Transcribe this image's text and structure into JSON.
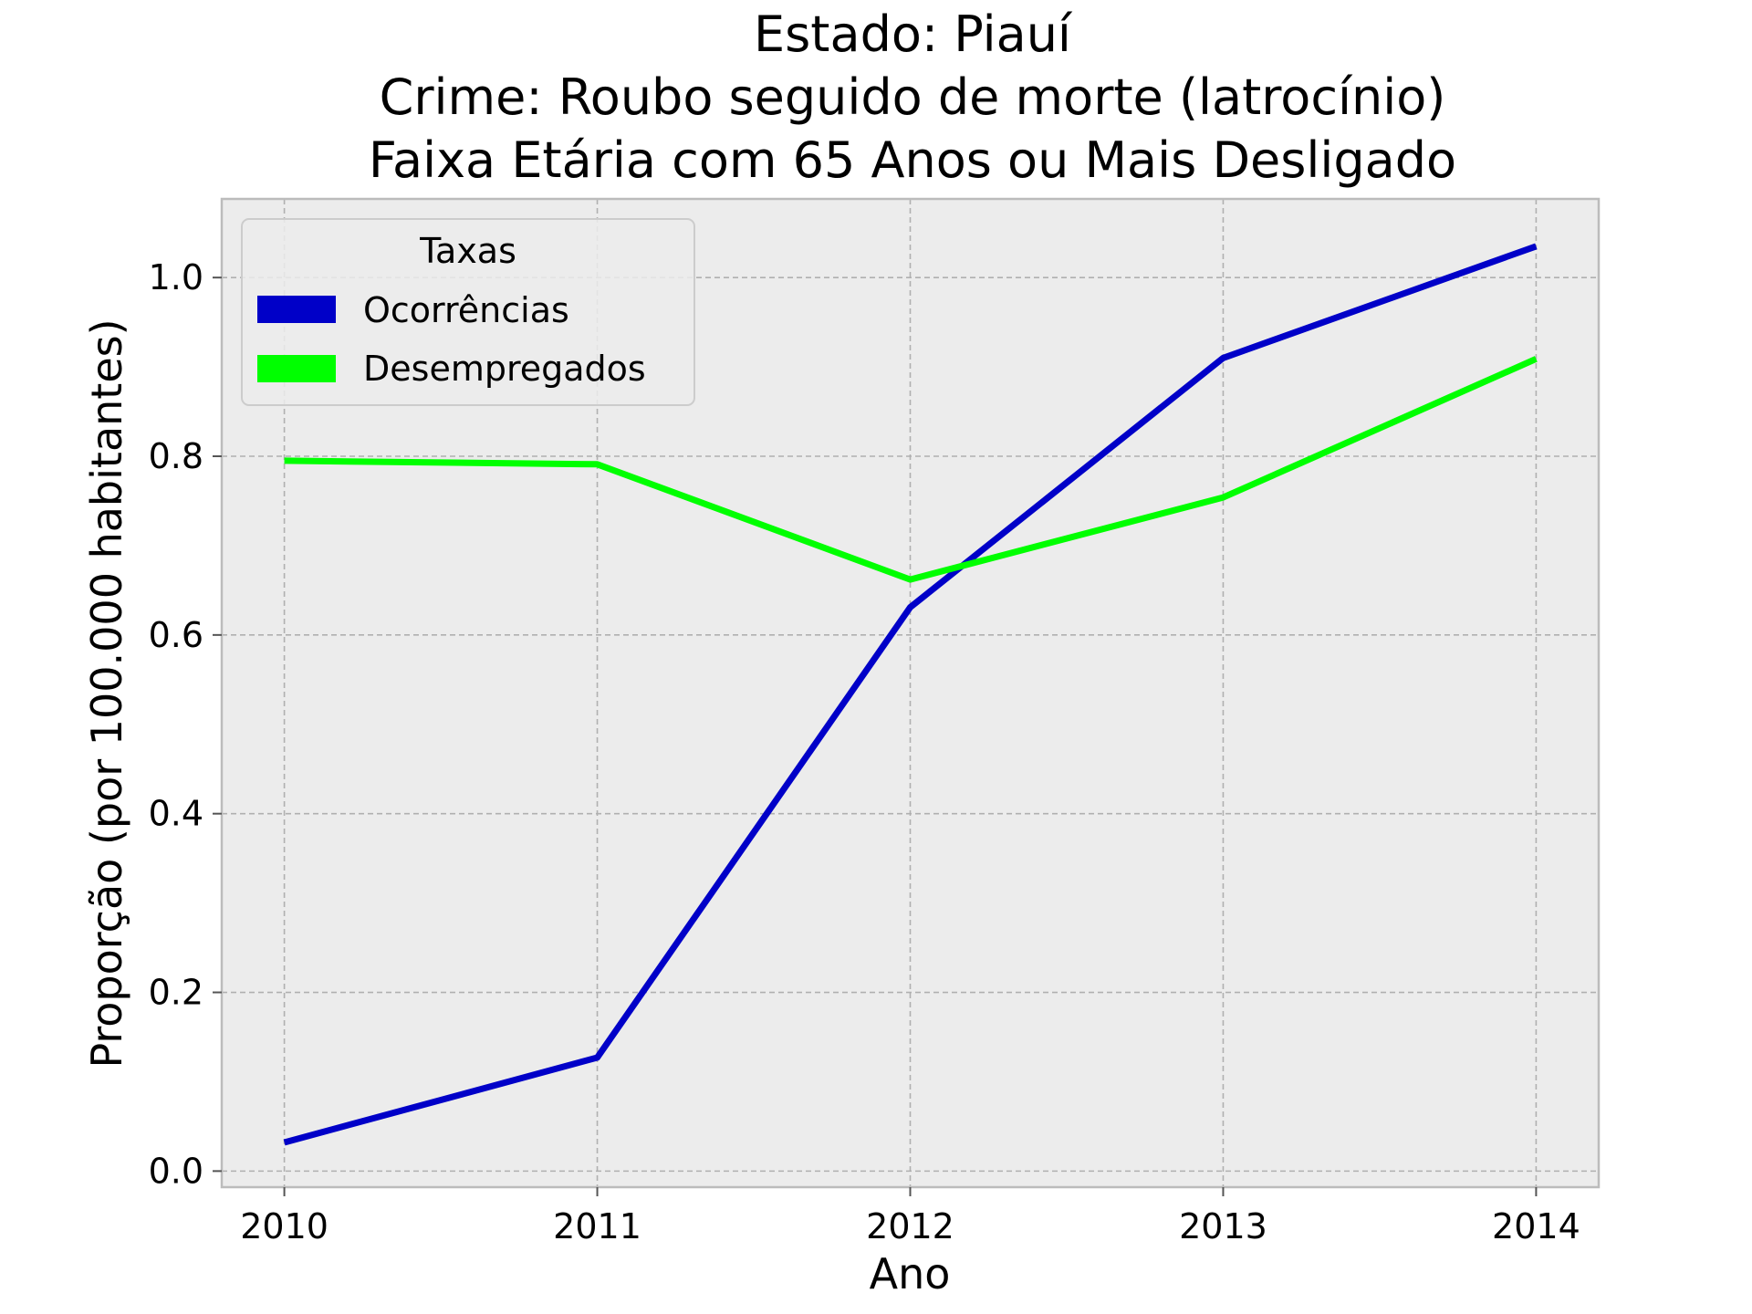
{
  "chart_data": {
    "type": "line",
    "title_lines": [
      "Estado: Piauí",
      "Crime: Roubo seguido de morte (latrocínio)",
      "Faixa Etária com 65 Anos ou Mais   Desligado"
    ],
    "xlabel": "Ano",
    "ylabel": "Proporção (por 100.000 habitantes)",
    "x": [
      2010,
      2011,
      2012,
      2013,
      2014
    ],
    "x_tick_labels": [
      "2010",
      "2011",
      "2012",
      "2013",
      "2014"
    ],
    "y_ticks": [
      0.0,
      0.2,
      0.4,
      0.6,
      0.8,
      1.0
    ],
    "y_tick_labels": [
      "0.0",
      "0.2",
      "0.4",
      "0.6",
      "0.8",
      "1.0"
    ],
    "xlim": [
      2009.8,
      2014.2
    ],
    "ylim": [
      -0.018,
      1.088
    ],
    "grid": true,
    "legend": {
      "title": "Taxas",
      "placement": "top-left"
    },
    "series": [
      {
        "name": "Ocorrências",
        "color": "#0000c8",
        "values": [
          0.032,
          0.127,
          0.631,
          0.91,
          1.035
        ]
      },
      {
        "name": "Desempregados",
        "color": "#00ff00",
        "values": [
          0.795,
          0.791,
          0.662,
          0.754,
          0.909
        ]
      }
    ],
    "colors": {
      "plot_background": "#ececec",
      "grid": "#b0b0b0",
      "frame": "#bcbcbc"
    }
  }
}
